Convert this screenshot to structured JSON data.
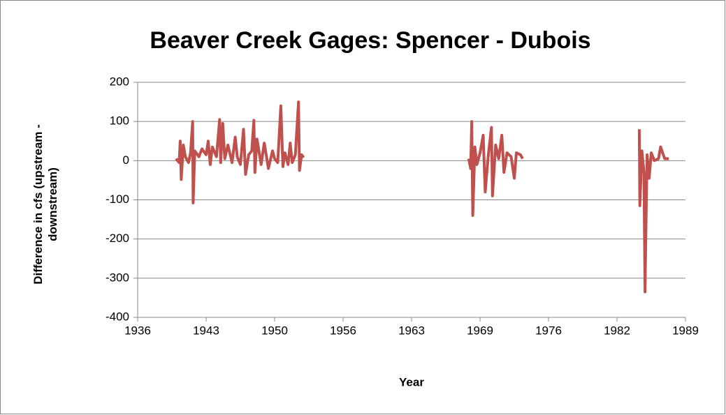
{
  "chart_data": {
    "type": "line",
    "title": "Beaver Creek Gages:  Spencer - Dubois",
    "x_label": "Year",
    "y_label": "Difference in cfs (upstream - downstream)",
    "xlim": [
      1936.4,
      1989.2
    ],
    "xticks": [
      {
        "value": 1936.4,
        "label": "1936"
      },
      {
        "value": 1943,
        "label": "1943"
      },
      {
        "value": 1949.6,
        "label": "1950"
      },
      {
        "value": 1956.2,
        "label": "1956"
      },
      {
        "value": 1962.8,
        "label": "1963"
      },
      {
        "value": 1969.4,
        "label": "1969"
      },
      {
        "value": 1976,
        "label": "1976"
      },
      {
        "value": 1982.6,
        "label": "1982"
      },
      {
        "value": 1989.2,
        "label": "1989"
      }
    ],
    "ylim": [
      -400,
      200
    ],
    "yticks": [
      -400,
      -300,
      -200,
      -100,
      0,
      100,
      200
    ],
    "grid": true,
    "series": [
      {
        "color": "#c0504d",
        "x": [
          1940.1,
          1940.4,
          1940.5,
          1940.6,
          1940.8,
          1941.0,
          1941.3,
          1941.5,
          1941.7,
          1941.75,
          1941.9,
          1942.3,
          1942.6,
          1943.0,
          1943.2,
          1943.4,
          1943.6,
          1944.0,
          1944.3,
          1944.4,
          1944.6,
          1944.8,
          1945.1,
          1945.5,
          1945.8,
          1946.0,
          1946.3,
          1946.6,
          1946.8,
          1947.1,
          1947.4,
          1947.6,
          1947.7,
          1947.9,
          1948.3,
          1948.6,
          1949.0,
          1949.4,
          1949.6,
          1949.9,
          1950.2,
          1950.4,
          1950.6,
          1950.9,
          1951.1,
          1951.3,
          1951.6,
          1951.9,
          1952.0,
          1952.2,
          1952.4,
          null,
          1968.3,
          1968.5,
          1968.6,
          1968.7,
          1968.9,
          1969.1,
          1969.4,
          1969.7,
          1969.9,
          1970.2,
          1970.5,
          1970.6,
          1970.9,
          1971.2,
          1971.5,
          1971.7,
          1972.0,
          1972.4,
          1972.7,
          1972.9,
          1973.3,
          1973.5,
          null,
          1984.75,
          1984.8,
          1985.0,
          1985.2,
          1985.3,
          1985.4,
          1985.5,
          1985.7,
          1985.9,
          1986.2,
          1986.6,
          1986.8,
          1987.0,
          1987.2,
          1987.6
        ],
        "values": [
          5,
          -5,
          50,
          -48,
          40,
          10,
          -5,
          20,
          100,
          -108,
          25,
          10,
          30,
          15,
          50,
          -10,
          35,
          10,
          105,
          -5,
          95,
          5,
          40,
          -5,
          60,
          10,
          -10,
          80,
          -35,
          15,
          25,
          103,
          -30,
          55,
          -10,
          45,
          -20,
          25,
          5,
          -5,
          140,
          -15,
          20,
          -10,
          45,
          -5,
          15,
          150,
          -25,
          15,
          8,
          null,
          5,
          -20,
          100,
          -140,
          35,
          -10,
          20,
          65,
          -80,
          15,
          85,
          -90,
          40,
          5,
          65,
          -30,
          20,
          10,
          -45,
          20,
          15,
          5,
          null,
          80,
          -115,
          25,
          -30,
          -335,
          -150,
          15,
          -45,
          20,
          0,
          5,
          35,
          20,
          5,
          5
        ]
      }
    ]
  }
}
